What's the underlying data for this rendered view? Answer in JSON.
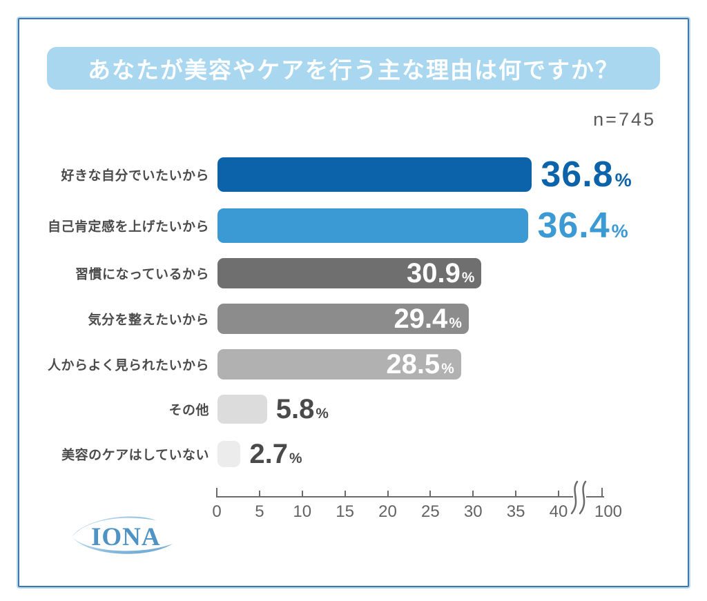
{
  "title": {
    "text": "あなたが美容やケアを行う主な理由は何ですか？"
  },
  "sample_size": "n=745",
  "chart_data": {
    "type": "bar",
    "orientation": "horizontal",
    "title": "あなたが美容やケアを行う主な理由は何ですか？",
    "sample_size_label": "n=745",
    "categories": [
      "好きな自分でいたいから",
      "自己肯定感を上げたいから",
      "習慣になっているから",
      "気分を整えたいから",
      "人からよく見られたいから",
      "その他",
      "美容のケアはしていない"
    ],
    "values": [
      36.8,
      36.4,
      30.9,
      29.4,
      28.5,
      5.8,
      2.7
    ],
    "value_labels": [
      "36.8",
      "36.4",
      "30.9",
      "29.4",
      "28.5",
      "5.8",
      "2.7"
    ],
    "value_suffix": "%",
    "bar_colors": [
      "#0c63a9",
      "#3b99d4",
      "#6f6f6f",
      "#8c8c8c",
      "#b1b1b1",
      "#dcdcdc",
      "#ececec"
    ],
    "value_placement": [
      "outside",
      "outside",
      "inside",
      "inside",
      "inside",
      "outside",
      "outside"
    ],
    "value_colors": [
      "#0c63a9",
      "#3b99d4",
      "#ffffff",
      "#ffffff",
      "#ffffff",
      "#4a4a4a",
      "#4a4a4a"
    ],
    "value_emphasis": [
      "large",
      "large",
      "normal",
      "normal",
      "normal",
      "normal",
      "normal"
    ],
    "xlabel": "",
    "ylabel": "",
    "xlim": [
      0,
      100
    ],
    "x_ticks": [
      0,
      5,
      10,
      15,
      20,
      25,
      30,
      35,
      40
    ],
    "x_tick_labels": [
      "0",
      "5",
      "10",
      "15",
      "20",
      "25",
      "30",
      "35",
      "40"
    ],
    "axis_break": {
      "after": 40,
      "end_value": 100,
      "end_label": "100"
    },
    "grid": false,
    "legend": false
  },
  "logo": {
    "text": "IONA"
  },
  "colors": {
    "title_bg": "#a9d7f0",
    "title_text": "#ffffff",
    "frame_border": "#3c78ad",
    "frame_outer": "#bcd9ec",
    "axis": "#6a6a6a",
    "category_text": "#4b4b4b",
    "sample_size_text": "#58595b",
    "logo_blue": "#4e93c3",
    "logo_swoosh_light": "#cde7f5",
    "logo_swoosh_dark": "#5d9fcf"
  }
}
